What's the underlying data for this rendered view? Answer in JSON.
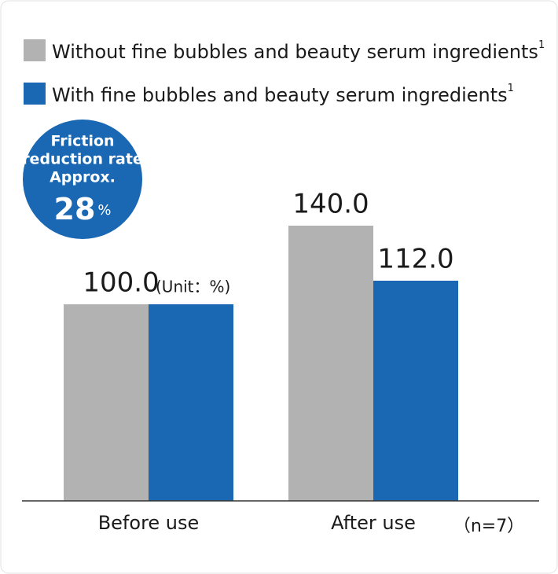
{
  "chart_data": {
    "type": "bar",
    "categories": [
      "Before use",
      "After use"
    ],
    "series": [
      {
        "name": "Without fine bubbles and beauty serum ingredients",
        "color": "#b3b2b2",
        "values": [
          100.0,
          140.0
        ],
        "value_labels": [
          "100.0",
          "140.0"
        ]
      },
      {
        "name": "With fine bubbles and beauty serum ingredients",
        "color": "#1a68b3",
        "values": [
          100.0,
          112.0
        ],
        "value_labels": [
          null,
          "112.0"
        ]
      }
    ],
    "legend_footnote": "1",
    "unit_note": "(Unit：%)",
    "sample_note": "（n=7）",
    "badge": {
      "lines": [
        "Friction",
        "reduction rate",
        "Approx."
      ],
      "value": "28",
      "unit": "%",
      "color": "#1a68b3"
    }
  }
}
